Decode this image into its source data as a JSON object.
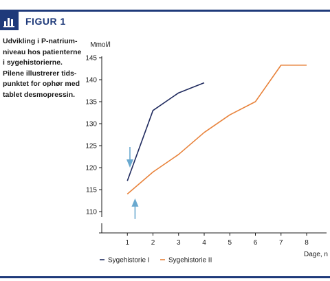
{
  "figure": {
    "label": "FIGUR 1",
    "caption_lines": [
      "Udvikling i P-natrium-",
      "niveau hos patienterne",
      "i sygehistorierne.",
      "Pilene illustrerer tids-",
      "punktet for ophør med",
      "tablet desmopressin."
    ]
  },
  "colors": {
    "accent": "#1f3a7a",
    "series1": "#1f2a5e",
    "series2": "#e8823a",
    "arrow": "#6aa9cf"
  },
  "chart_data": {
    "type": "line",
    "ylabel": "Mmol/l",
    "xlabel": "Dage, n",
    "xlim": [
      0,
      8
    ],
    "ylim": [
      100,
      145
    ],
    "xticks": [
      1,
      2,
      3,
      4,
      5,
      6,
      7,
      8
    ],
    "yticks": [
      110,
      115,
      120,
      125,
      130,
      135,
      140,
      145
    ],
    "legend_position": "bottom",
    "series": [
      {
        "name": "Sygehistorie I",
        "x": [
          1,
          2,
          3,
          4
        ],
        "y": [
          117,
          133,
          137,
          139.3
        ],
        "color": "#1f2a5e"
      },
      {
        "name": "Sygehistorie II",
        "x": [
          1,
          2,
          3,
          4,
          5,
          6,
          7,
          8
        ],
        "y": [
          114,
          119,
          123,
          128,
          132,
          135,
          143.3,
          143.3
        ],
        "color": "#e8823a"
      }
    ],
    "annotations": [
      {
        "type": "arrow",
        "direction": "down",
        "x": 1.1,
        "tip_y": 120
      },
      {
        "type": "arrow",
        "direction": "up",
        "x": 1.3,
        "tip_y": 113
      }
    ]
  }
}
